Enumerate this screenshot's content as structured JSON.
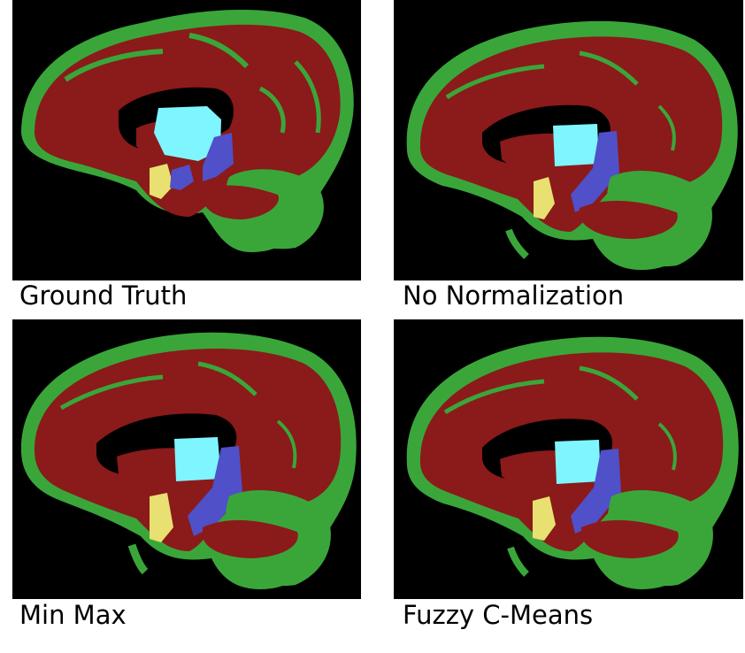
{
  "panels": [
    {
      "caption": "Ground Truth"
    },
    {
      "caption": "No Normalization"
    },
    {
      "caption": "Min Max"
    },
    {
      "caption": "Fuzzy C-Means"
    }
  ],
  "colors": {
    "background": "#000000",
    "white_matter": "#8b1a1a",
    "gray_matter": "#3aa63a",
    "thalamus": "#7ff5ff",
    "putamen": "#5050c8",
    "hippocampus": "#e8e070"
  }
}
